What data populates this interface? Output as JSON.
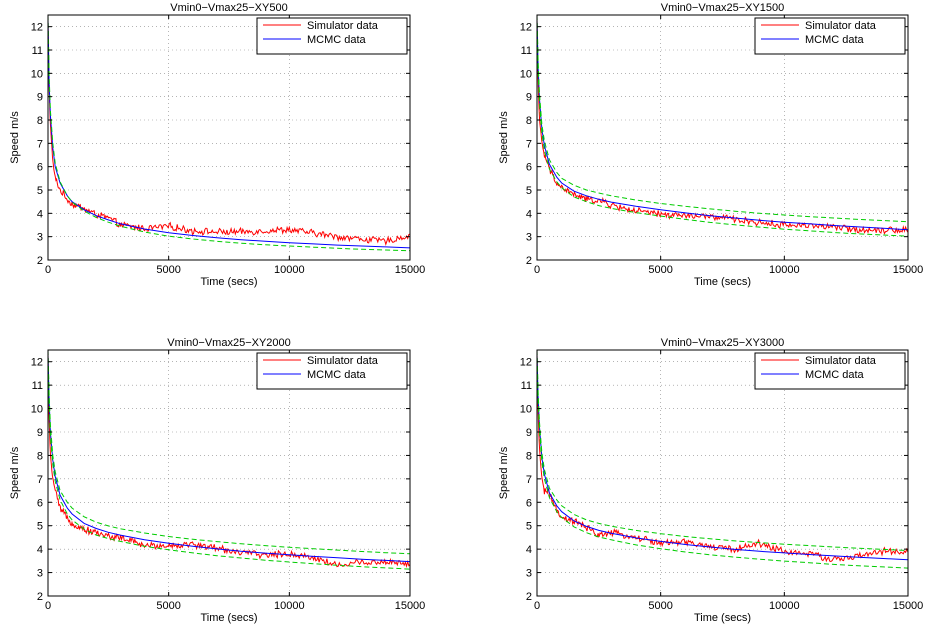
{
  "chart_data": [
    {
      "type": "line",
      "title": "Vmin0−Vmax25−XY500",
      "xlabel": "Time (secs)",
      "ylabel": "Speed m/s",
      "xlim": [
        0,
        15000
      ],
      "ylim": [
        2,
        12.5
      ],
      "xticks": [
        0,
        5000,
        10000,
        15000
      ],
      "yticks": [
        2,
        3,
        4,
        5,
        6,
        7,
        8,
        9,
        10,
        11,
        12
      ],
      "grid": true,
      "legend": "top-right",
      "series": [
        {
          "name": "Simulator data",
          "color": "#ff0000",
          "style": "noisy",
          "x": [
            0,
            50,
            100,
            200,
            300,
            500,
            800,
            1000,
            1500,
            2000,
            2500,
            3000,
            4000,
            5000,
            6000,
            7000,
            8000,
            9000,
            10000,
            11000,
            12000,
            13000,
            14000,
            15000
          ],
          "y": [
            12.2,
            9.2,
            7.8,
            6.2,
            5.5,
            5.0,
            4.6,
            4.4,
            4.2,
            3.95,
            3.8,
            3.5,
            3.35,
            3.45,
            3.25,
            3.2,
            3.2,
            3.25,
            3.3,
            3.15,
            3.0,
            2.9,
            2.8,
            3.05
          ]
        },
        {
          "name": "MCMC data",
          "color": "#0000ff",
          "style": "solid",
          "x": [
            0,
            50,
            100,
            200,
            300,
            500,
            800,
            1000,
            1500,
            2000,
            2500,
            3000,
            4000,
            5000,
            6000,
            7000,
            8000,
            9000,
            10000,
            11000,
            12000,
            13000,
            14000,
            15000
          ],
          "y": [
            12.3,
            9.5,
            8.2,
            6.8,
            6.0,
            5.3,
            4.75,
            4.5,
            4.15,
            3.9,
            3.72,
            3.55,
            3.33,
            3.17,
            3.05,
            2.95,
            2.87,
            2.8,
            2.74,
            2.69,
            2.64,
            2.6,
            2.56,
            2.52
          ]
        },
        {
          "name": "",
          "color": "#00cc00",
          "style": "dashed",
          "x": [
            0,
            50,
            100,
            200,
            300,
            500,
            800,
            1000,
            1500,
            2000,
            2500,
            3000,
            4000,
            5000,
            6000,
            7000,
            8000,
            9000,
            10000,
            11000,
            12000,
            13000,
            14000,
            15000
          ],
          "y": [
            12.5,
            9.8,
            8.4,
            7.0,
            6.15,
            5.35,
            4.75,
            4.48,
            4.1,
            3.82,
            3.62,
            3.45,
            3.2,
            3.02,
            2.9,
            2.8,
            2.72,
            2.65,
            2.6,
            2.55,
            2.5,
            2.46,
            2.43,
            2.4
          ]
        }
      ]
    },
    {
      "type": "line",
      "title": "Vmin0−Vmax25−XY1500",
      "xlabel": "Time (secs)",
      "ylabel": "Speed m/s",
      "xlim": [
        0,
        15000
      ],
      "ylim": [
        2,
        12.5
      ],
      "xticks": [
        0,
        5000,
        10000,
        15000
      ],
      "yticks": [
        2,
        3,
        4,
        5,
        6,
        7,
        8,
        9,
        10,
        11,
        12
      ],
      "grid": true,
      "legend": "top-right",
      "series": [
        {
          "name": "Simulator data",
          "color": "#ff0000",
          "style": "noisy",
          "x": [
            0,
            50,
            100,
            200,
            300,
            500,
            800,
            1000,
            1500,
            2000,
            2500,
            3000,
            4000,
            5000,
            6000,
            7000,
            8000,
            9000,
            10000,
            11000,
            12000,
            13000,
            14000,
            15000
          ],
          "y": [
            12.3,
            9.5,
            8.0,
            7.0,
            6.5,
            5.9,
            5.3,
            5.1,
            4.8,
            4.6,
            4.55,
            4.35,
            4.1,
            3.95,
            3.9,
            3.85,
            3.75,
            3.6,
            3.5,
            3.5,
            3.4,
            3.3,
            3.3,
            3.3
          ]
        },
        {
          "name": "MCMC data",
          "color": "#0000ff",
          "style": "solid",
          "x": [
            0,
            50,
            100,
            200,
            300,
            500,
            800,
            1000,
            1500,
            2000,
            2500,
            3000,
            4000,
            5000,
            6000,
            7000,
            8000,
            9000,
            10000,
            11000,
            12000,
            13000,
            14000,
            15000
          ],
          "y": [
            12.3,
            10.2,
            8.9,
            7.6,
            6.9,
            6.1,
            5.55,
            5.3,
            4.95,
            4.75,
            4.6,
            4.48,
            4.3,
            4.15,
            4.02,
            3.9,
            3.8,
            3.7,
            3.62,
            3.55,
            3.48,
            3.42,
            3.36,
            3.3
          ]
        },
        {
          "name": "",
          "color": "#00cc00",
          "style": "dashed",
          "x": [
            0,
            50,
            100,
            200,
            300,
            500,
            800,
            1000,
            1500,
            2000,
            2500,
            3000,
            4000,
            5000,
            6000,
            7000,
            8000,
            9000,
            10000,
            11000,
            12000,
            13000,
            14000,
            15000
          ],
          "y": [
            12.5,
            10.4,
            9.1,
            7.8,
            7.1,
            6.3,
            5.75,
            5.5,
            5.2,
            5.0,
            4.87,
            4.75,
            4.57,
            4.42,
            4.3,
            4.19,
            4.09,
            4.0,
            3.93,
            3.86,
            3.8,
            3.74,
            3.69,
            3.64
          ]
        },
        {
          "name": "",
          "color": "#00cc00",
          "style": "dashed",
          "x": [
            0,
            50,
            100,
            200,
            300,
            500,
            800,
            1000,
            1500,
            2000,
            2500,
            3000,
            4000,
            5000,
            6000,
            7000,
            8000,
            9000,
            10000,
            11000,
            12000,
            13000,
            14000,
            15000
          ],
          "y": [
            12.1,
            10.0,
            8.7,
            7.4,
            6.7,
            5.9,
            5.35,
            5.1,
            4.7,
            4.5,
            4.33,
            4.21,
            4.03,
            3.88,
            3.74,
            3.61,
            3.51,
            3.41,
            3.32,
            3.25,
            3.18,
            3.12,
            3.07,
            3.02
          ]
        }
      ]
    },
    {
      "type": "line",
      "title": "Vmin0−Vmax25−XY2000",
      "xlabel": "Time (secs)",
      "ylabel": "Speed m/s",
      "xlim": [
        0,
        15000
      ],
      "ylim": [
        2,
        12.5
      ],
      "xticks": [
        0,
        5000,
        10000,
        15000
      ],
      "yticks": [
        2,
        3,
        4,
        5,
        6,
        7,
        8,
        9,
        10,
        11,
        12
      ],
      "grid": true,
      "legend": "top-right",
      "series": [
        {
          "name": "Simulator data",
          "color": "#ff0000",
          "style": "noisy",
          "x": [
            0,
            50,
            100,
            200,
            300,
            500,
            800,
            1000,
            1500,
            2000,
            2500,
            3000,
            4000,
            5000,
            6000,
            7000,
            8000,
            9000,
            10000,
            11000,
            12000,
            13000,
            14000,
            15000
          ],
          "y": [
            12.3,
            9.3,
            8.0,
            7.0,
            6.5,
            5.7,
            5.35,
            5.1,
            4.85,
            4.7,
            4.55,
            4.5,
            4.15,
            4.15,
            4.2,
            4.05,
            3.85,
            3.75,
            3.8,
            3.65,
            3.3,
            3.45,
            3.45,
            3.4
          ]
        },
        {
          "name": "MCMC data",
          "color": "#0000ff",
          "style": "solid",
          "x": [
            0,
            50,
            100,
            200,
            300,
            500,
            800,
            1000,
            1500,
            2000,
            2500,
            3000,
            4000,
            5000,
            6000,
            7000,
            8000,
            9000,
            10000,
            11000,
            12000,
            13000,
            14000,
            15000
          ],
          "y": [
            12.3,
            10.3,
            9.0,
            7.8,
            7.1,
            6.3,
            5.75,
            5.5,
            5.1,
            4.88,
            4.72,
            4.6,
            4.4,
            4.25,
            4.12,
            4.01,
            3.91,
            3.83,
            3.76,
            3.69,
            3.63,
            3.57,
            3.52,
            3.47
          ]
        },
        {
          "name": "",
          "color": "#00cc00",
          "style": "dashed",
          "x": [
            0,
            50,
            100,
            200,
            300,
            500,
            800,
            1000,
            1500,
            2000,
            2500,
            3000,
            4000,
            5000,
            6000,
            7000,
            8000,
            9000,
            10000,
            11000,
            12000,
            13000,
            14000,
            15000
          ],
          "y": [
            12.5,
            10.5,
            9.3,
            8.0,
            7.3,
            6.5,
            6.0,
            5.75,
            5.38,
            5.15,
            4.99,
            4.87,
            4.69,
            4.54,
            4.42,
            4.32,
            4.23,
            4.15,
            4.08,
            4.02,
            3.96,
            3.9,
            3.85,
            3.8
          ]
        },
        {
          "name": "",
          "color": "#00cc00",
          "style": "dashed",
          "x": [
            0,
            50,
            100,
            200,
            300,
            500,
            800,
            1000,
            1500,
            2000,
            2500,
            3000,
            4000,
            5000,
            6000,
            7000,
            8000,
            9000,
            10000,
            11000,
            12000,
            13000,
            14000,
            15000
          ],
          "y": [
            12.1,
            10.1,
            8.8,
            7.6,
            6.9,
            6.1,
            5.5,
            5.25,
            4.85,
            4.6,
            4.45,
            4.33,
            4.12,
            3.97,
            3.84,
            3.72,
            3.62,
            3.53,
            3.45,
            3.38,
            3.31,
            3.25,
            3.2,
            3.15
          ]
        }
      ]
    },
    {
      "type": "line",
      "title": "Vmin0−Vmax25−XY3000",
      "xlabel": "Time (secs)",
      "ylabel": "Speed m/s",
      "xlim": [
        0,
        15000
      ],
      "ylim": [
        2,
        12.5
      ],
      "xticks": [
        0,
        5000,
        10000,
        15000
      ],
      "yticks": [
        2,
        3,
        4,
        5,
        6,
        7,
        8,
        9,
        10,
        11,
        12
      ],
      "grid": true,
      "legend": "top-right",
      "series": [
        {
          "name": "Simulator data",
          "color": "#ff0000",
          "style": "noisy",
          "x": [
            0,
            50,
            100,
            200,
            300,
            500,
            800,
            1000,
            1500,
            2000,
            2500,
            3000,
            4000,
            5000,
            6000,
            7000,
            8000,
            9000,
            10000,
            11000,
            12000,
            13000,
            14000,
            15000
          ],
          "y": [
            12.3,
            9.6,
            8.3,
            7.0,
            6.5,
            6.4,
            5.6,
            5.3,
            5.2,
            4.9,
            4.6,
            4.7,
            4.5,
            4.25,
            4.3,
            4.1,
            4.0,
            4.25,
            3.9,
            3.8,
            3.55,
            3.7,
            3.9,
            3.85
          ]
        },
        {
          "name": "MCMC data",
          "color": "#0000ff",
          "style": "solid",
          "x": [
            0,
            50,
            100,
            200,
            300,
            500,
            800,
            1000,
            1500,
            2000,
            2500,
            3000,
            4000,
            5000,
            6000,
            7000,
            8000,
            9000,
            10000,
            11000,
            12000,
            13000,
            14000,
            15000
          ],
          "y": [
            12.3,
            10.4,
            9.2,
            7.9,
            7.2,
            6.4,
            5.85,
            5.6,
            5.2,
            4.97,
            4.8,
            4.68,
            4.48,
            4.33,
            4.2,
            4.09,
            3.99,
            3.91,
            3.84,
            3.77,
            3.71,
            3.65,
            3.6,
            3.55
          ]
        },
        {
          "name": "",
          "color": "#00cc00",
          "style": "dashed",
          "x": [
            0,
            50,
            100,
            200,
            300,
            500,
            800,
            1000,
            1500,
            2000,
            2500,
            3000,
            4000,
            5000,
            6000,
            7000,
            8000,
            9000,
            10000,
            11000,
            12000,
            13000,
            14000,
            15000
          ],
          "y": [
            12.5,
            10.6,
            9.4,
            8.1,
            7.4,
            6.6,
            6.1,
            5.85,
            5.48,
            5.25,
            5.1,
            4.98,
            4.8,
            4.66,
            4.54,
            4.44,
            4.35,
            4.28,
            4.21,
            4.15,
            4.09,
            4.04,
            3.99,
            3.94
          ]
        },
        {
          "name": "",
          "color": "#00cc00",
          "style": "dashed",
          "x": [
            0,
            50,
            100,
            200,
            300,
            500,
            800,
            1000,
            1500,
            2000,
            2500,
            3000,
            4000,
            5000,
            6000,
            7000,
            8000,
            9000,
            10000,
            11000,
            12000,
            13000,
            14000,
            15000
          ],
          "y": [
            12.1,
            10.2,
            9.0,
            7.7,
            7.0,
            6.2,
            5.6,
            5.35,
            4.95,
            4.7,
            4.52,
            4.4,
            4.18,
            4.02,
            3.88,
            3.76,
            3.66,
            3.57,
            3.49,
            3.42,
            3.35,
            3.29,
            3.24,
            3.19
          ]
        }
      ]
    }
  ]
}
